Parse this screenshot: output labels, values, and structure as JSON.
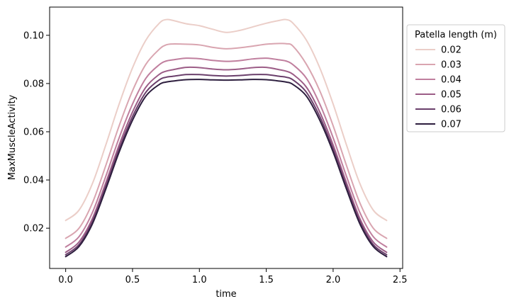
{
  "chart_data": {
    "type": "line",
    "title": "",
    "xlabel": "time",
    "ylabel": "MaxMuscleActivity",
    "xlim": [
      -0.12,
      2.52
    ],
    "ylim": [
      0.0033,
      0.1117
    ],
    "x_ticks": [
      0.0,
      0.5,
      1.0,
      1.5,
      2.0,
      2.5
    ],
    "x_tick_labels": [
      "0.0",
      "0.5",
      "1.0",
      "1.5",
      "2.0",
      "2.5"
    ],
    "y_ticks": [
      0.02,
      0.04,
      0.06,
      0.08,
      0.1
    ],
    "y_tick_labels": [
      "0.02",
      "0.04",
      "0.06",
      "0.08",
      "0.10"
    ],
    "grid": false,
    "legend": {
      "title": "Patella length (m)",
      "placement": "outside-right-top"
    },
    "x": [
      0.0,
      0.1,
      0.2,
      0.3,
      0.4,
      0.5,
      0.6,
      0.7,
      0.75,
      0.8,
      0.9,
      1.0,
      1.1,
      1.2,
      1.3,
      1.4,
      1.5,
      1.6,
      1.65,
      1.7,
      1.8,
      1.9,
      2.0,
      2.1,
      2.2,
      2.3,
      2.4
    ],
    "series": [
      {
        "name": "0.02",
        "color": "#ebcec8",
        "values": [
          0.0232,
          0.0275,
          0.0385,
          0.0545,
          0.0715,
          0.0865,
          0.098,
          0.105,
          0.1065,
          0.1062,
          0.1048,
          0.104,
          0.1025,
          0.1012,
          0.102,
          0.1035,
          0.105,
          0.1062,
          0.1065,
          0.105,
          0.098,
          0.0865,
          0.0715,
          0.0545,
          0.0385,
          0.0275,
          0.0232
        ]
      },
      {
        "name": "0.03",
        "color": "#d9a5b0",
        "values": [
          0.0158,
          0.02,
          0.0305,
          0.046,
          0.0625,
          0.077,
          0.088,
          0.0942,
          0.096,
          0.0964,
          0.0963,
          0.096,
          0.095,
          0.0944,
          0.0948,
          0.0955,
          0.0963,
          0.0966,
          0.0965,
          0.0955,
          0.088,
          0.077,
          0.0625,
          0.046,
          0.0305,
          0.02,
          0.0158
        ]
      },
      {
        "name": "0.04",
        "color": "#c07f9e",
        "values": [
          0.0122,
          0.0165,
          0.0265,
          0.0415,
          0.0575,
          0.0715,
          0.0822,
          0.0878,
          0.0893,
          0.0898,
          0.0905,
          0.0903,
          0.0896,
          0.0892,
          0.0895,
          0.0902,
          0.0905,
          0.0898,
          0.0893,
          0.0878,
          0.0822,
          0.0715,
          0.0575,
          0.0415,
          0.0265,
          0.0165,
          0.0122
        ]
      },
      {
        "name": "0.05",
        "color": "#9c5d87",
        "values": [
          0.01,
          0.0143,
          0.024,
          0.0388,
          0.0545,
          0.0682,
          0.0785,
          0.0838,
          0.0851,
          0.0857,
          0.0867,
          0.0866,
          0.086,
          0.0857,
          0.086,
          0.0866,
          0.0867,
          0.0857,
          0.0851,
          0.0838,
          0.0785,
          0.0682,
          0.0545,
          0.0388,
          0.024,
          0.0143,
          0.01
        ]
      },
      {
        "name": "0.06",
        "color": "#6a3f6b",
        "values": [
          0.009,
          0.0132,
          0.0228,
          0.0374,
          0.0529,
          0.0663,
          0.0764,
          0.0815,
          0.0826,
          0.083,
          0.0837,
          0.0837,
          0.0833,
          0.0831,
          0.0833,
          0.0837,
          0.0837,
          0.083,
          0.0826,
          0.0815,
          0.0764,
          0.0663,
          0.0529,
          0.0374,
          0.0228,
          0.0132,
          0.009
        ]
      },
      {
        "name": "0.07",
        "color": "#2d1e3e",
        "values": [
          0.0082,
          0.0124,
          0.0218,
          0.0362,
          0.0516,
          0.0648,
          0.0748,
          0.0796,
          0.0806,
          0.081,
          0.0816,
          0.0817,
          0.0815,
          0.0814,
          0.0815,
          0.0817,
          0.0816,
          0.081,
          0.0806,
          0.0796,
          0.0748,
          0.0648,
          0.0516,
          0.0362,
          0.0218,
          0.0124,
          0.0082
        ]
      }
    ]
  }
}
